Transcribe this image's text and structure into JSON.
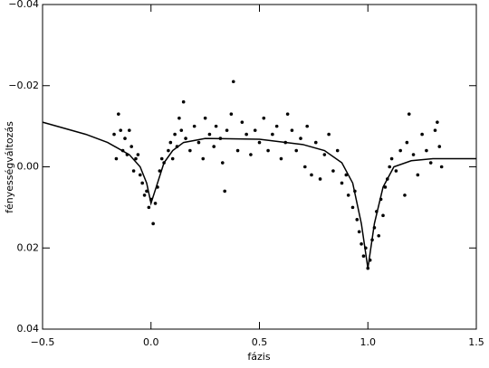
{
  "chart_data": {
    "type": "scatter",
    "xlabel": "fázis",
    "ylabel": "fényességváltozás",
    "xlim": [
      -0.5,
      1.5
    ],
    "ylim": [
      0.04,
      -0.04
    ],
    "xticks": [
      {
        "value": -0.5,
        "label": "−0.5"
      },
      {
        "value": 0,
        "label": "0.0"
      },
      {
        "value": 0.5,
        "label": "0.5"
      },
      {
        "value": 1,
        "label": "1.0"
      },
      {
        "value": 1.5,
        "label": "1.5"
      }
    ],
    "yticks": [
      {
        "value": -0.04,
        "label": "−0.04"
      },
      {
        "value": -0.02,
        "label": "−0.02"
      },
      {
        "value": 0,
        "label": "0.00"
      },
      {
        "value": 0.02,
        "label": "0.02"
      },
      {
        "value": 0.04,
        "label": "0.04"
      }
    ],
    "series": [
      {
        "type": "scatter",
        "color": "#000000",
        "x": [
          -0.17,
          -0.16,
          -0.15,
          -0.14,
          -0.13,
          -0.12,
          -0.11,
          -0.1,
          -0.09,
          -0.08,
          -0.07,
          -0.06,
          -0.05,
          -0.04,
          -0.03,
          -0.02,
          -0.01,
          0.0,
          0.01,
          0.02,
          0.03,
          0.04,
          0.05,
          0.06,
          0.08,
          0.09,
          0.1,
          0.11,
          0.12,
          0.13,
          0.14,
          0.15,
          0.16,
          0.18,
          0.2,
          0.22,
          0.24,
          0.25,
          0.27,
          0.29,
          0.3,
          0.32,
          0.33,
          0.34,
          0.35,
          0.37,
          0.38,
          0.4,
          0.42,
          0.44,
          0.46,
          0.48,
          0.5,
          0.52,
          0.54,
          0.56,
          0.58,
          0.6,
          0.62,
          0.63,
          0.65,
          0.67,
          0.69,
          0.71,
          0.72,
          0.74,
          0.76,
          0.78,
          0.8,
          0.82,
          0.84,
          0.86,
          0.88,
          0.9,
          0.91,
          0.93,
          0.94,
          0.95,
          0.96,
          0.97,
          0.98,
          0.99,
          1.0,
          1.01,
          1.02,
          1.03,
          1.04,
          1.05,
          1.06,
          1.07,
          1.08,
          1.09,
          1.1,
          1.11,
          1.13,
          1.15,
          1.17,
          1.18,
          1.19,
          1.21,
          1.23,
          1.25,
          1.27,
          1.29,
          1.31,
          1.32,
          1.33,
          1.34
        ],
        "values": [
          -0.008,
          -0.002,
          -0.013,
          -0.009,
          -0.004,
          -0.007,
          -0.003,
          -0.009,
          -0.005,
          0.001,
          -0.002,
          -0.003,
          0.002,
          0.004,
          0.007,
          0.006,
          0.01,
          0.008,
          0.014,
          0.009,
          0.005,
          0.001,
          -0.002,
          -0.001,
          -0.004,
          -0.006,
          -0.002,
          -0.008,
          -0.005,
          -0.012,
          -0.009,
          -0.016,
          -0.007,
          -0.004,
          -0.01,
          -0.006,
          -0.002,
          -0.012,
          -0.008,
          -0.005,
          -0.01,
          -0.007,
          -0.001,
          0.006,
          -0.009,
          -0.013,
          -0.021,
          -0.004,
          -0.011,
          -0.008,
          -0.003,
          -0.009,
          -0.006,
          -0.012,
          -0.004,
          -0.008,
          -0.01,
          -0.002,
          -0.006,
          -0.013,
          -0.009,
          -0.004,
          -0.007,
          0.0,
          -0.01,
          0.002,
          -0.006,
          0.003,
          -0.003,
          -0.008,
          0.001,
          -0.004,
          0.004,
          0.002,
          0.007,
          0.01,
          0.006,
          0.013,
          0.016,
          0.019,
          0.022,
          0.02,
          0.025,
          0.023,
          0.018,
          0.015,
          0.011,
          0.017,
          0.008,
          0.012,
          0.005,
          0.003,
          0.0,
          -0.002,
          0.001,
          -0.004,
          0.007,
          -0.006,
          -0.013,
          -0.003,
          0.002,
          -0.008,
          -0.004,
          -0.001,
          -0.009,
          -0.011,
          -0.005,
          0.0
        ]
      },
      {
        "type": "line",
        "color": "#000000",
        "x": [
          -0.5,
          -0.3,
          -0.2,
          -0.1,
          -0.05,
          -0.02,
          0.0,
          0.03,
          0.06,
          0.1,
          0.15,
          0.25,
          0.5,
          0.7,
          0.8,
          0.88,
          0.93,
          0.97,
          1.0,
          1.03,
          1.07,
          1.12,
          1.2,
          1.3,
          1.5
        ],
        "values": [
          -0.011,
          -0.008,
          -0.006,
          -0.003,
          0.0,
          0.004,
          0.009,
          0.004,
          -0.001,
          -0.004,
          -0.006,
          -0.007,
          -0.0068,
          -0.0055,
          -0.004,
          -0.001,
          0.004,
          0.014,
          0.025,
          0.014,
          0.005,
          0.0,
          -0.0015,
          -0.002,
          -0.002
        ]
      }
    ]
  }
}
